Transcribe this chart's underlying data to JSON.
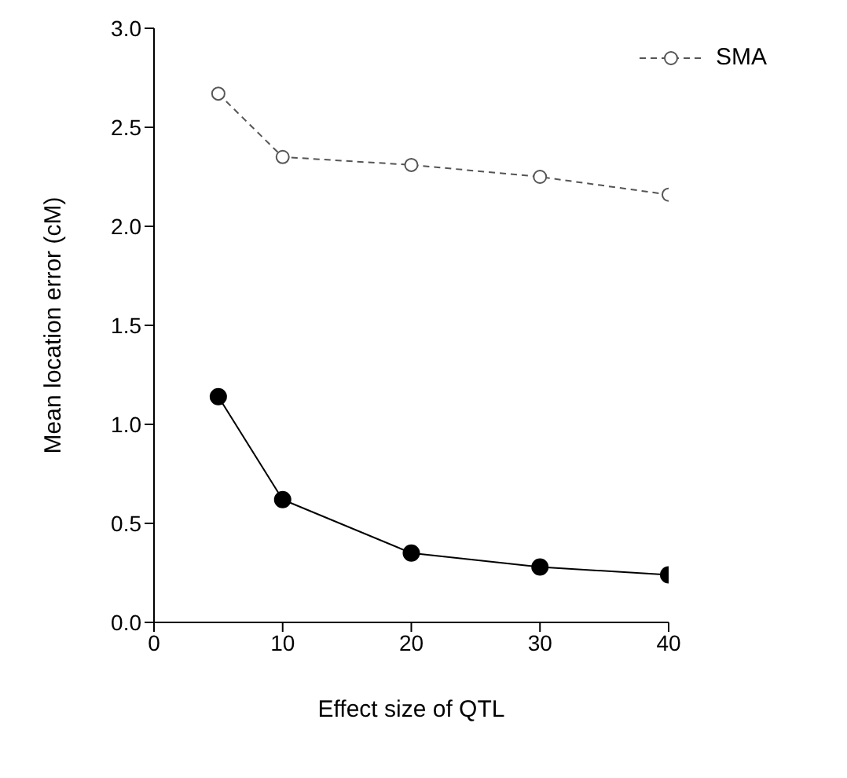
{
  "chart_data": {
    "type": "line",
    "xlabel": "Effect size of QTL",
    "ylabel": "Mean location error (cM)",
    "x": [
      5,
      10,
      20,
      30,
      40
    ],
    "series": [
      {
        "color": "#000000",
        "values": [
          1.14,
          0.62,
          0.35,
          0.28,
          0.24
        ],
        "marker": "circle",
        "line_style": "solid"
      },
      {
        "name": "SMA",
        "color": "#555555",
        "values": [
          2.67,
          2.35,
          2.31,
          2.25,
          2.16
        ],
        "marker": "circle",
        "line_style": "dashed"
      }
    ],
    "xlim": [
      0,
      40
    ],
    "xticks": [
      0,
      10,
      20,
      30,
      40
    ],
    "ylim": [
      0,
      3
    ],
    "yticks": [
      {
        "value": 0,
        "label": "0.0"
      },
      {
        "value": 0.5,
        "label": "0.5"
      },
      {
        "value": 1,
        "label": "1.0"
      },
      {
        "value": 1.5,
        "label": "1.5"
      },
      {
        "value": 2,
        "label": "2.0"
      },
      {
        "value": 2.5,
        "label": "2.5"
      },
      {
        "value": 3,
        "label": "3.0"
      }
    ],
    "grid": false,
    "legend": "top right"
  }
}
